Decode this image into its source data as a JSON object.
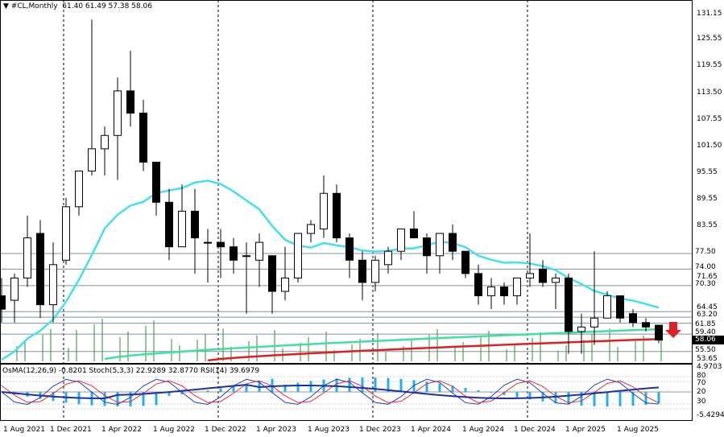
{
  "header": {
    "symbol": "#CL,Monthly",
    "ohlc": "61.40 61.49 57.38 58.06"
  },
  "oscillator_header": "OsMA(12,26,9) -0.8201  Stoch(5,3,3) 22.9289 32.8770  RSI(14) 39.6979",
  "price_axis": [
    "131.15",
    "125.55",
    "119.55",
    "113.50",
    "107.55",
    "101.50",
    "95.55",
    "89.55",
    "83.55",
    "77.50",
    "74.00",
    "71.65",
    "70.30",
    "64.45",
    "63.20",
    "61.85",
    "59.40",
    "58.06",
    "55.50",
    "53.65"
  ],
  "price_boxes": {
    "level_77": "77.50",
    "level_74": "74.00",
    "level_70": "70.30",
    "current": "58.06",
    "level_55": "55.50",
    "level_59": "59.40",
    "level_61": "61.85"
  },
  "osc_axis": [
    "4.9703",
    "80",
    "20",
    "70",
    "30",
    "-5.4294"
  ],
  "date_axis": [
    "1 Aug 2021",
    "1 Dec 2021",
    "1 Apr 2022",
    "1 Aug 2022",
    "1 Dec 2022",
    "1 Apr 2023",
    "1 Aug 2023",
    "1 Dec 2023",
    "1 Apr 2024",
    "1 Aug 2024",
    "1 Dec 2024",
    "1 Apr 2025",
    "1 Aug 2025"
  ],
  "colors": {
    "bull": "#ffffff",
    "bear": "#000000",
    "ema_fast": "#40e0f0",
    "ema_mid": "#40e0a0",
    "ema_slow": "#e02020",
    "osma": "#20b0f0",
    "stoch_main": "#2040c0",
    "stoch_signal": "#e03030",
    "rsi": "#2030a0",
    "volume": "#2e8b2e",
    "arrow": "#e02020"
  },
  "chart_data": {
    "type": "candlestick",
    "timeframe": "Monthly",
    "candles": [
      {
        "o": 68,
        "h": 72,
        "l": 62,
        "c": 65
      },
      {
        "o": 67,
        "h": 73,
        "l": 62,
        "c": 72
      },
      {
        "o": 72,
        "h": 86,
        "l": 70,
        "c": 81
      },
      {
        "o": 82,
        "h": 85,
        "l": 63,
        "c": 66
      },
      {
        "o": 66,
        "h": 80,
        "l": 62,
        "c": 75
      },
      {
        "o": 76,
        "h": 90,
        "l": 75,
        "c": 88
      },
      {
        "o": 88,
        "h": 96,
        "l": 86,
        "c": 96
      },
      {
        "o": 96,
        "h": 130,
        "l": 95,
        "c": 101
      },
      {
        "o": 101,
        "h": 106,
        "l": 95,
        "c": 104
      },
      {
        "o": 104,
        "h": 117,
        "l": 94,
        "c": 114
      },
      {
        "o": 114,
        "h": 123,
        "l": 106,
        "c": 109
      },
      {
        "o": 109,
        "h": 112,
        "l": 96,
        "c": 98
      },
      {
        "o": 98,
        "h": 98,
        "l": 86,
        "c": 89
      },
      {
        "o": 89,
        "h": 92,
        "l": 76,
        "c": 79
      },
      {
        "o": 79,
        "h": 93,
        "l": 79,
        "c": 87
      },
      {
        "o": 87,
        "h": 92,
        "l": 73,
        "c": 81
      },
      {
        "o": 80,
        "h": 83,
        "l": 71,
        "c": 80
      },
      {
        "o": 80,
        "h": 83,
        "l": 72,
        "c": 79
      },
      {
        "o": 79,
        "h": 81,
        "l": 73,
        "c": 76
      },
      {
        "o": 77,
        "h": 80,
        "l": 64,
        "c": 77
      },
      {
        "o": 76,
        "h": 82,
        "l": 70,
        "c": 80
      },
      {
        "o": 77,
        "h": 77,
        "l": 64,
        "c": 69
      },
      {
        "o": 69,
        "h": 79,
        "l": 67,
        "c": 72
      },
      {
        "o": 72,
        "h": 82,
        "l": 71,
        "c": 82
      },
      {
        "o": 82,
        "h": 85,
        "l": 80,
        "c": 84
      },
      {
        "o": 83,
        "h": 95,
        "l": 81,
        "c": 91
      },
      {
        "o": 91,
        "h": 93,
        "l": 80,
        "c": 81
      },
      {
        "o": 81,
        "h": 82,
        "l": 72,
        "c": 76
      },
      {
        "o": 76,
        "h": 78,
        "l": 67,
        "c": 71
      },
      {
        "o": 71,
        "h": 77,
        "l": 69,
        "c": 76
      },
      {
        "o": 75,
        "h": 79,
        "l": 73,
        "c": 78
      },
      {
        "o": 78,
        "h": 83,
        "l": 76,
        "c": 83
      },
      {
        "o": 83,
        "h": 87,
        "l": 81,
        "c": 81
      },
      {
        "o": 81,
        "h": 82,
        "l": 73,
        "c": 77
      },
      {
        "o": 77,
        "h": 82,
        "l": 73,
        "c": 82
      },
      {
        "o": 82,
        "h": 84,
        "l": 76,
        "c": 78
      },
      {
        "o": 78,
        "h": 78,
        "l": 72,
        "c": 73
      },
      {
        "o": 73,
        "h": 75,
        "l": 66,
        "c": 68
      },
      {
        "o": 68,
        "h": 72,
        "l": 65,
        "c": 70
      },
      {
        "o": 70,
        "h": 71,
        "l": 66,
        "c": 68
      },
      {
        "o": 68,
        "h": 72,
        "l": 66,
        "c": 72
      },
      {
        "o": 72,
        "h": 82,
        "l": 70,
        "c": 73
      },
      {
        "o": 74,
        "h": 76,
        "l": 70,
        "c": 71
      },
      {
        "o": 71,
        "h": 73,
        "l": 65,
        "c": 72
      },
      {
        "o": 72,
        "h": 73,
        "l": 55,
        "c": 60
      },
      {
        "o": 60,
        "h": 64,
        "l": 55,
        "c": 61
      },
      {
        "o": 61,
        "h": 78,
        "l": 57,
        "c": 63
      },
      {
        "o": 63,
        "h": 69,
        "l": 63,
        "c": 68
      },
      {
        "o": 68,
        "h": 68,
        "l": 62,
        "c": 63
      },
      {
        "o": 64,
        "h": 65,
        "l": 61,
        "c": 62
      },
      {
        "o": 62,
        "h": 63,
        "l": 60,
        "c": 61
      },
      {
        "o": 61.4,
        "h": 61.49,
        "l": 57.38,
        "c": 58.06
      }
    ],
    "ylim": [
      53.65,
      131.15
    ]
  }
}
